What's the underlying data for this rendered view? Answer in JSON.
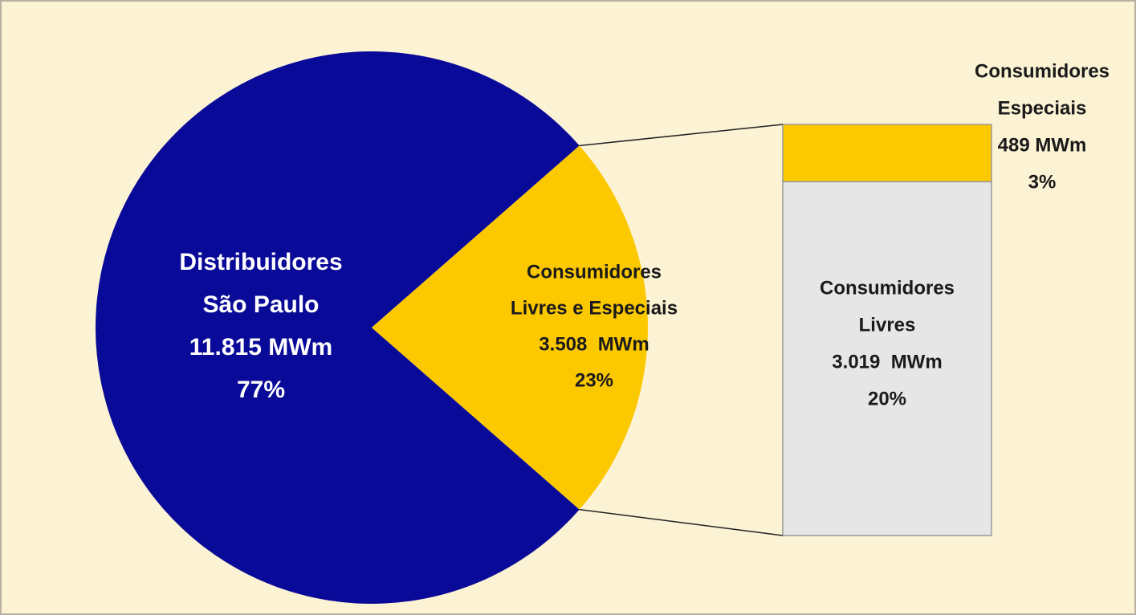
{
  "chart_data": {
    "type": "pie-of-bar",
    "pie": {
      "names": [
        [
          "Distribuidores",
          "São Paulo"
        ],
        [
          "Consumidores",
          "Livres e Especiais"
        ]
      ],
      "values": [
        11815,
        3508
      ],
      "value_labels": [
        "11.815 MWm",
        "3.508  MWm"
      ],
      "percents": [
        77,
        23
      ],
      "percent_labels": [
        "77%",
        "23%"
      ],
      "colors": [
        "#0a0a98",
        "#fcc800"
      ],
      "label_colors": [
        "#ffffff",
        "#1a1a1a"
      ]
    },
    "bar": {
      "names": [
        [
          "Consumidores",
          "Especiais"
        ],
        [
          "Consumidores",
          "Livres"
        ]
      ],
      "values": [
        489,
        3019
      ],
      "value_labels": [
        "489 MWm",
        "3.019  MWm"
      ],
      "percents": [
        3,
        20
      ],
      "percent_labels": [
        "3%",
        "20%"
      ],
      "colors": [
        "#fcc800",
        "#e6e6e6"
      ]
    }
  }
}
